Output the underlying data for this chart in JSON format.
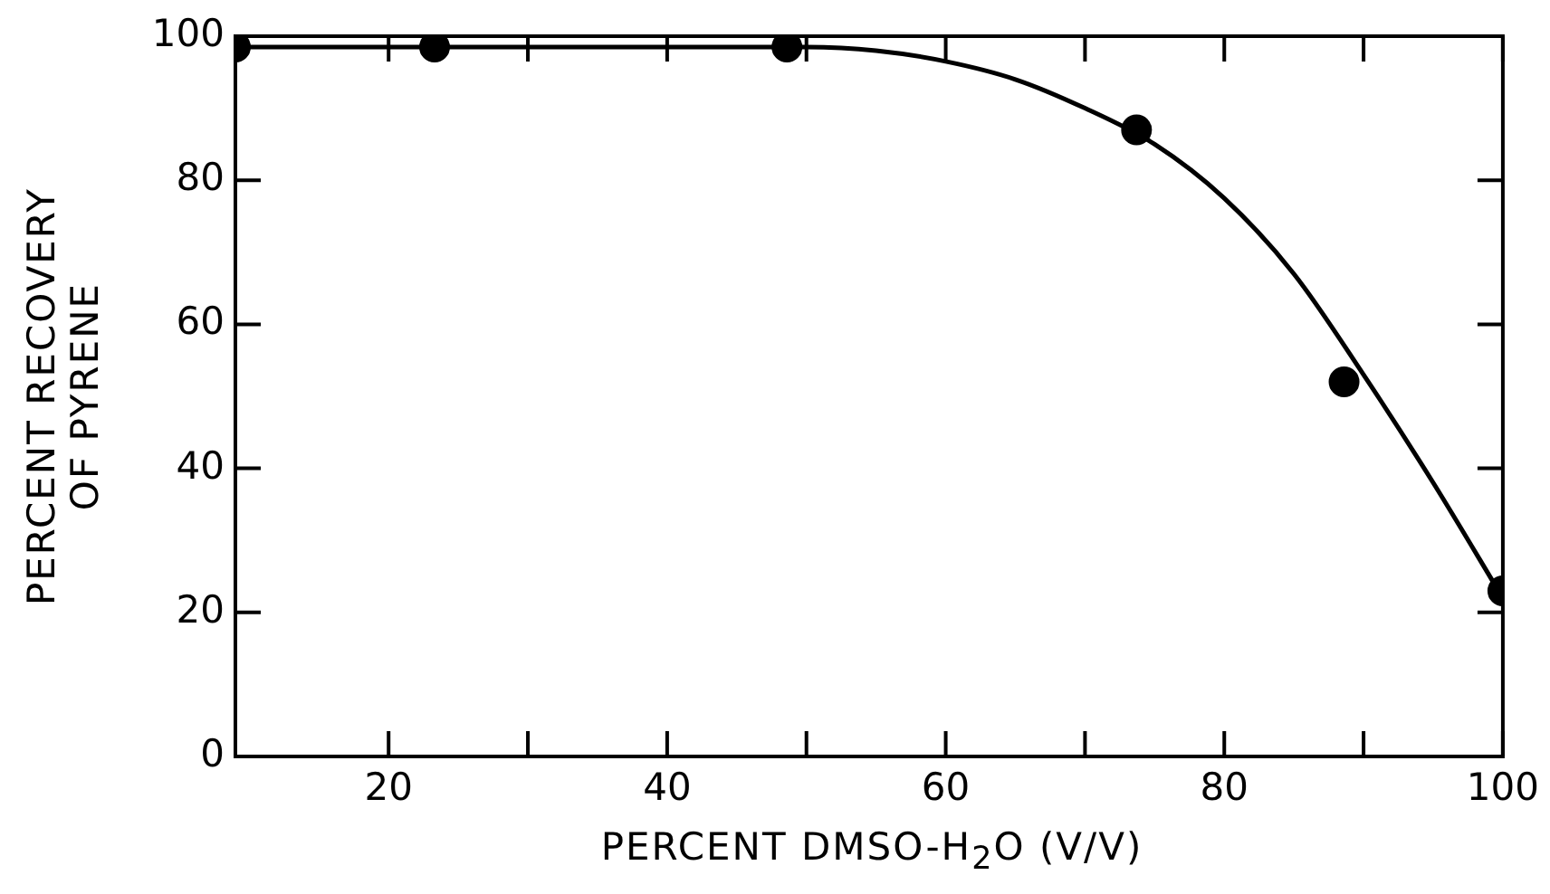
{
  "chart_data": {
    "type": "scatter",
    "xlabel": "PERCENT DMSO-H$_{2}$O (V/V)",
    "ylabel": "PERCENT RECOVERY OF PYRENE",
    "xlim": [
      9,
      100
    ],
    "ylim": [
      0,
      100
    ],
    "xticks": [
      20,
      {
        "value": 30,
        "label": null
      },
      40,
      {
        "value": 50,
        "label": null
      },
      60,
      {
        "value": 70,
        "label": null
      },
      80,
      {
        "value": 90,
        "label": null
      },
      100
    ],
    "yticks": [
      0,
      20,
      40,
      60,
      80,
      100
    ],
    "series": [
      {
        "color": "#000000",
        "marker": "circle",
        "x": [
          9,
          23.3,
          48.6,
          73.7,
          88.6,
          100
        ],
        "values": [
          98.5,
          98.5,
          98.5,
          87,
          52,
          23
        ]
      },
      {
        "type": "line",
        "color": "#000000",
        "marker": "none",
        "x": [
          9,
          50,
          55,
          60,
          65,
          70,
          75,
          80,
          85,
          90,
          95,
          100
        ],
        "values": [
          98.5,
          98.5,
          98,
          96.5,
          94,
          90,
          85,
          77.5,
          67,
          53,
          38,
          22
        ]
      }
    ]
  }
}
